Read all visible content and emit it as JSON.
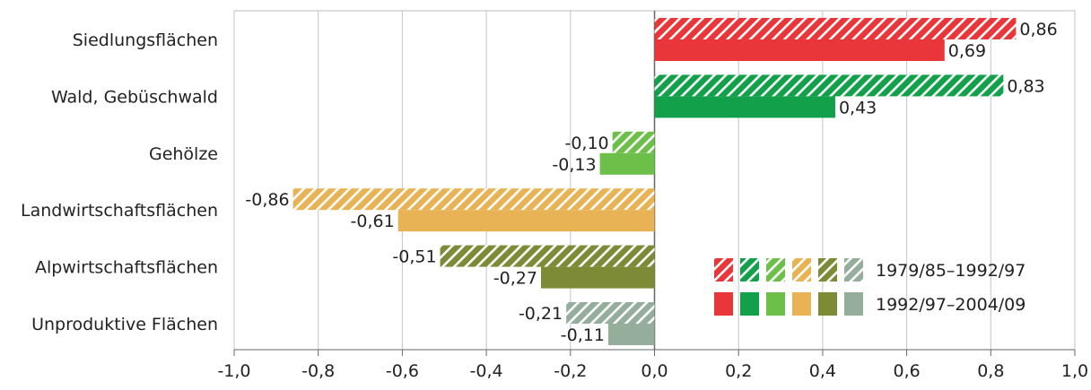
{
  "chart_data": {
    "type": "bar",
    "orientation": "horizontal",
    "categories": [
      "Siedlungsflächen",
      "Wald, Gebüschwald",
      "Gehölze",
      "Landwirtschaftsflächen",
      "Alpwirtschaftsflächen",
      "Unproduktive Flächen"
    ],
    "series": [
      {
        "name": "1979/85–1992/97",
        "style": "hatched",
        "values": [
          0.86,
          0.83,
          -0.1,
          -0.86,
          -0.51,
          -0.21
        ],
        "labels": [
          "0,86",
          "0,83",
          "-0,10",
          "-0,86",
          "-0,51",
          "-0,21"
        ]
      },
      {
        "name": "1992/97–2004/09",
        "style": "solid",
        "values": [
          0.69,
          0.43,
          -0.13,
          -0.61,
          -0.27,
          -0.11
        ],
        "labels": [
          "0,69",
          "0,43",
          "-0,13",
          "-0,61",
          "-0,27",
          "-0,11"
        ]
      }
    ],
    "category_colors": [
      "#e8363a",
      "#12a14a",
      "#6cc04a",
      "#e8b354",
      "#7d8a36",
      "#95ae9c"
    ],
    "xlim": [
      -1.0,
      1.0
    ],
    "xticks": [
      -1.0,
      -0.8,
      -0.6,
      -0.4,
      -0.2,
      0.0,
      0.2,
      0.4,
      0.6,
      0.8,
      1.0
    ],
    "xtick_labels": [
      "-1,0",
      "-0,8",
      "-0,6",
      "-0,4",
      "-0,2",
      "0,0",
      "0,2",
      "0,4",
      "0,6",
      "0,8",
      "1,0"
    ],
    "grid": true,
    "legend_position": "lower-right"
  }
}
